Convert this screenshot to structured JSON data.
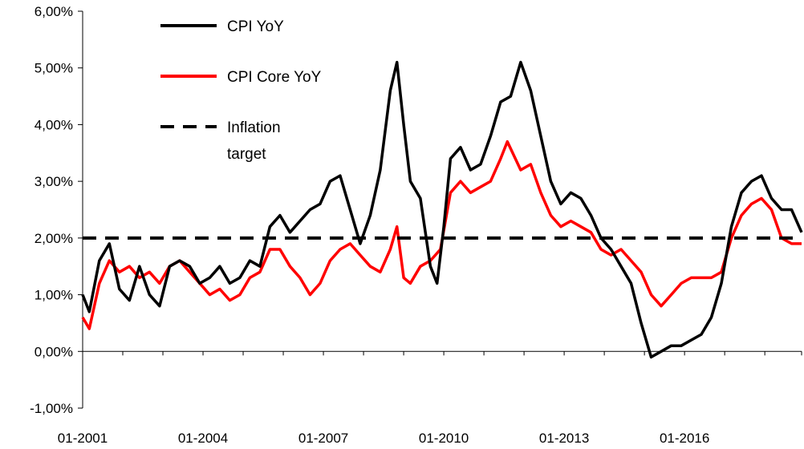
{
  "chart_data": {
    "type": "line",
    "title": "",
    "xlabel": "",
    "ylabel": "",
    "x_start": "2001-01",
    "x_end": "2018-12",
    "x_ticks": [
      "01-2001",
      "01-2004",
      "01-2007",
      "01-2010",
      "01-2013",
      "01-2016"
    ],
    "y_ticks": [
      "6,00%",
      "5,00%",
      "4,00%",
      "3,00%",
      "2,00%",
      "1,00%",
      "0,00%",
      "-1,00%"
    ],
    "ylim": [
      -1,
      6
    ],
    "grid": false,
    "legend_position": "top-left",
    "series": [
      {
        "name": "CPI YoY",
        "color": "#000000",
        "style": "solid",
        "points": [
          [
            "2001-01",
            1.0
          ],
          [
            "2001-03",
            0.7
          ],
          [
            "2001-06",
            1.6
          ],
          [
            "2001-09",
            1.9
          ],
          [
            "2001-12",
            1.1
          ],
          [
            "2002-03",
            0.9
          ],
          [
            "2002-06",
            1.5
          ],
          [
            "2002-09",
            1.0
          ],
          [
            "2002-12",
            0.8
          ],
          [
            "2003-03",
            1.5
          ],
          [
            "2003-06",
            1.6
          ],
          [
            "2003-09",
            1.5
          ],
          [
            "2003-12",
            1.2
          ],
          [
            "2004-03",
            1.3
          ],
          [
            "2004-06",
            1.5
          ],
          [
            "2004-09",
            1.2
          ],
          [
            "2004-12",
            1.3
          ],
          [
            "2005-03",
            1.6
          ],
          [
            "2005-06",
            1.5
          ],
          [
            "2005-09",
            2.2
          ],
          [
            "2005-12",
            2.4
          ],
          [
            "2006-03",
            2.1
          ],
          [
            "2006-06",
            2.3
          ],
          [
            "2006-09",
            2.5
          ],
          [
            "2006-12",
            2.6
          ],
          [
            "2007-03",
            3.0
          ],
          [
            "2007-06",
            3.1
          ],
          [
            "2007-09",
            2.5
          ],
          [
            "2007-12",
            1.9
          ],
          [
            "2008-03",
            2.4
          ],
          [
            "2008-06",
            3.2
          ],
          [
            "2008-09",
            4.6
          ],
          [
            "2008-11",
            5.1
          ],
          [
            "2009-01",
            4.0
          ],
          [
            "2009-03",
            3.0
          ],
          [
            "2009-06",
            2.7
          ],
          [
            "2009-09",
            1.5
          ],
          [
            "2009-11",
            1.2
          ],
          [
            "2010-01",
            2.2
          ],
          [
            "2010-03",
            3.4
          ],
          [
            "2010-06",
            3.6
          ],
          [
            "2010-09",
            3.2
          ],
          [
            "2010-12",
            3.3
          ],
          [
            "2011-03",
            3.8
          ],
          [
            "2011-06",
            4.4
          ],
          [
            "2011-09",
            4.5
          ],
          [
            "2011-12",
            5.1
          ],
          [
            "2012-03",
            4.6
          ],
          [
            "2012-06",
            3.8
          ],
          [
            "2012-09",
            3.0
          ],
          [
            "2012-12",
            2.6
          ],
          [
            "2013-03",
            2.8
          ],
          [
            "2013-06",
            2.7
          ],
          [
            "2013-09",
            2.4
          ],
          [
            "2013-12",
            2.0
          ],
          [
            "2014-03",
            1.8
          ],
          [
            "2014-06",
            1.5
          ],
          [
            "2014-09",
            1.2
          ],
          [
            "2014-12",
            0.5
          ],
          [
            "2015-03",
            -0.1
          ],
          [
            "2015-06",
            0.0
          ],
          [
            "2015-09",
            0.1
          ],
          [
            "2015-12",
            0.1
          ],
          [
            "2016-03",
            0.2
          ],
          [
            "2016-06",
            0.3
          ],
          [
            "2016-09",
            0.6
          ],
          [
            "2016-12",
            1.2
          ],
          [
            "2017-03",
            2.2
          ],
          [
            "2017-06",
            2.8
          ],
          [
            "2017-09",
            3.0
          ],
          [
            "2017-12",
            3.1
          ],
          [
            "2018-03",
            2.7
          ],
          [
            "2018-06",
            2.5
          ],
          [
            "2018-09",
            2.5
          ],
          [
            "2018-12",
            2.1
          ]
        ]
      },
      {
        "name": "CPI Core YoY",
        "color": "#ff0000",
        "style": "solid",
        "points": [
          [
            "2001-01",
            0.6
          ],
          [
            "2001-03",
            0.4
          ],
          [
            "2001-06",
            1.2
          ],
          [
            "2001-09",
            1.6
          ],
          [
            "2001-12",
            1.4
          ],
          [
            "2002-03",
            1.5
          ],
          [
            "2002-06",
            1.3
          ],
          [
            "2002-09",
            1.4
          ],
          [
            "2002-12",
            1.2
          ],
          [
            "2003-03",
            1.5
          ],
          [
            "2003-06",
            1.6
          ],
          [
            "2003-09",
            1.4
          ],
          [
            "2003-12",
            1.2
          ],
          [
            "2004-03",
            1.0
          ],
          [
            "2004-06",
            1.1
          ],
          [
            "2004-09",
            0.9
          ],
          [
            "2004-12",
            1.0
          ],
          [
            "2005-03",
            1.3
          ],
          [
            "2005-06",
            1.4
          ],
          [
            "2005-09",
            1.8
          ],
          [
            "2005-12",
            1.8
          ],
          [
            "2006-03",
            1.5
          ],
          [
            "2006-06",
            1.3
          ],
          [
            "2006-09",
            1.0
          ],
          [
            "2006-12",
            1.2
          ],
          [
            "2007-03",
            1.6
          ],
          [
            "2007-06",
            1.8
          ],
          [
            "2007-09",
            1.9
          ],
          [
            "2007-12",
            1.7
          ],
          [
            "2008-03",
            1.5
          ],
          [
            "2008-06",
            1.4
          ],
          [
            "2008-09",
            1.8
          ],
          [
            "2008-11",
            2.2
          ],
          [
            "2009-01",
            1.3
          ],
          [
            "2009-03",
            1.2
          ],
          [
            "2009-06",
            1.5
          ],
          [
            "2009-09",
            1.6
          ],
          [
            "2009-12",
            1.8
          ],
          [
            "2010-03",
            2.8
          ],
          [
            "2010-06",
            3.0
          ],
          [
            "2010-09",
            2.8
          ],
          [
            "2010-12",
            2.9
          ],
          [
            "2011-03",
            3.0
          ],
          [
            "2011-06",
            3.4
          ],
          [
            "2011-08",
            3.7
          ],
          [
            "2011-12",
            3.2
          ],
          [
            "2012-03",
            3.3
          ],
          [
            "2012-06",
            2.8
          ],
          [
            "2012-09",
            2.4
          ],
          [
            "2012-12",
            2.2
          ],
          [
            "2013-03",
            2.3
          ],
          [
            "2013-06",
            2.2
          ],
          [
            "2013-09",
            2.1
          ],
          [
            "2013-12",
            1.8
          ],
          [
            "2014-03",
            1.7
          ],
          [
            "2014-06",
            1.8
          ],
          [
            "2014-09",
            1.6
          ],
          [
            "2014-12",
            1.4
          ],
          [
            "2015-03",
            1.0
          ],
          [
            "2015-06",
            0.8
          ],
          [
            "2015-09",
            1.0
          ],
          [
            "2015-12",
            1.2
          ],
          [
            "2016-03",
            1.3
          ],
          [
            "2016-06",
            1.3
          ],
          [
            "2016-09",
            1.3
          ],
          [
            "2016-12",
            1.4
          ],
          [
            "2017-03",
            2.0
          ],
          [
            "2017-06",
            2.4
          ],
          [
            "2017-09",
            2.6
          ],
          [
            "2017-12",
            2.7
          ],
          [
            "2018-03",
            2.5
          ],
          [
            "2018-06",
            2.0
          ],
          [
            "2018-09",
            1.9
          ],
          [
            "2018-12",
            1.9
          ]
        ]
      },
      {
        "name": "Inflation target",
        "color": "#000000",
        "style": "dashed",
        "points": [
          [
            "2001-01",
            2.0
          ],
          [
            "2018-12",
            2.0
          ]
        ]
      }
    ],
    "legend": [
      {
        "lines": [
          "CPI YoY"
        ],
        "color": "#000000",
        "style": "solid"
      },
      {
        "lines": [
          "CPI Core YoY"
        ],
        "color": "#ff0000",
        "style": "solid"
      },
      {
        "lines": [
          "Inflation",
          "target"
        ],
        "color": "#000000",
        "style": "dashed"
      }
    ]
  }
}
